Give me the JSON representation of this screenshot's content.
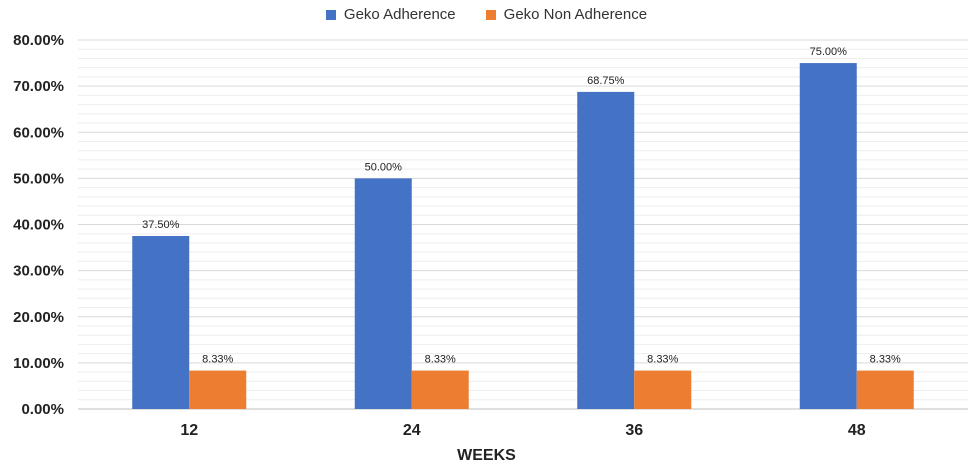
{
  "chart_data": {
    "type": "bar",
    "categories": [
      "12",
      "24",
      "36",
      "48"
    ],
    "series": [
      {
        "name": "Geko Adherence",
        "values": [
          37.5,
          50.0,
          68.75,
          75.0
        ],
        "labels": [
          "37.50%",
          "50.00%",
          "68.75%",
          "75.00%"
        ],
        "color": "#4472C4"
      },
      {
        "name": "Geko Non Adherence",
        "values": [
          8.33,
          8.33,
          8.33,
          8.33
        ],
        "labels": [
          "8.33%",
          "8.33%",
          "8.33%",
          "8.33%"
        ],
        "color": "#ED7D31"
      }
    ],
    "title": "",
    "xlabel": "WEEKS",
    "ylabel": "",
    "ylim": [
      0,
      80
    ],
    "yticks": [
      "0.00%",
      "10.00%",
      "20.00%",
      "30.00%",
      "40.00%",
      "50.00%",
      "60.00%",
      "70.00%",
      "80.00%"
    ],
    "grid": true,
    "legend": "top-center"
  }
}
